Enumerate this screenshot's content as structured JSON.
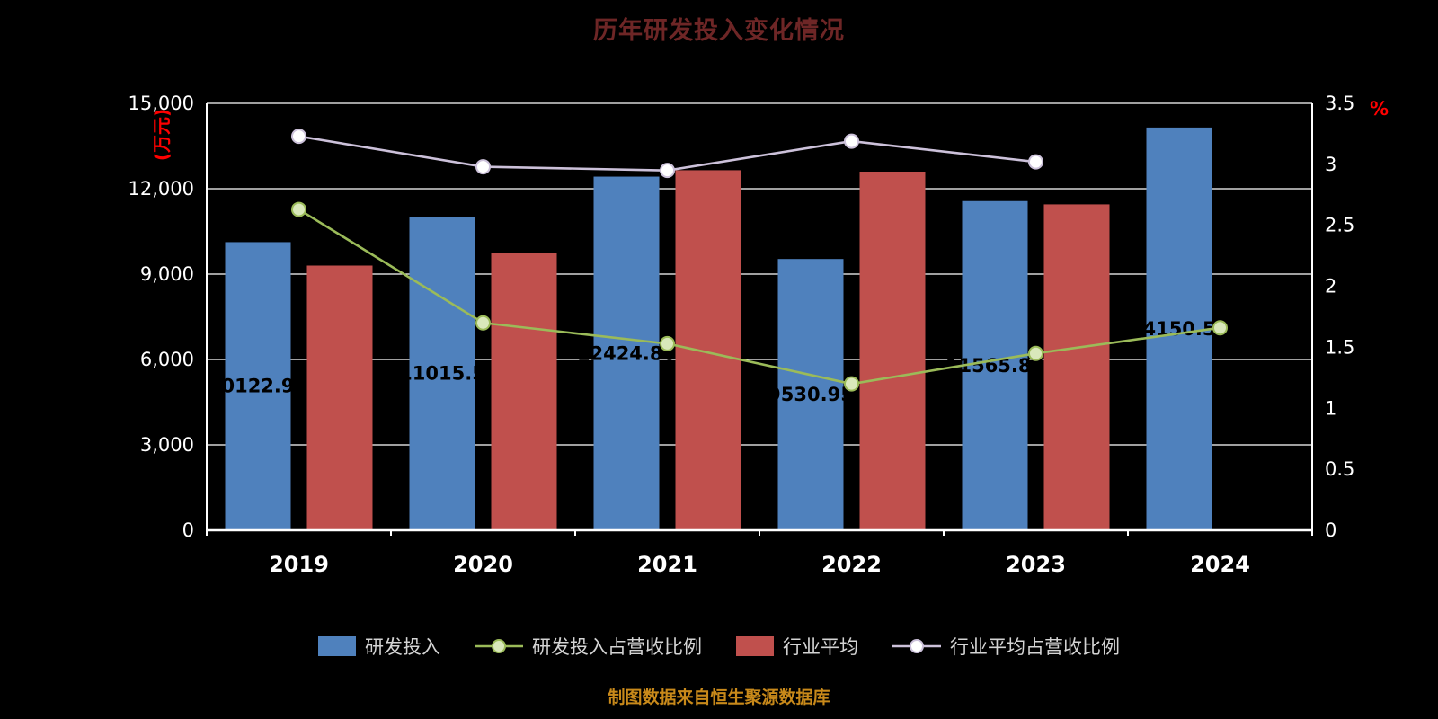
{
  "title": "历年研发投入变化情况",
  "footer": "制图数据来自恒生聚源数据库",
  "colors": {
    "background": "#000000",
    "title": "#6e2626",
    "axis": "#ffffff",
    "grid": "#ffffff",
    "tick_text": "#ffffff",
    "unit_text": "#ff0000",
    "bar_label": "#000000",
    "legend_text": "#d4d4d4",
    "footer_text": "#c8891a"
  },
  "chart_data": {
    "type": "bar",
    "title": "历年研发投入变化情况",
    "categories": [
      "2019",
      "2020",
      "2021",
      "2022",
      "2023",
      "2024"
    ],
    "series": [
      {
        "name": "研发投入",
        "kind": "bar",
        "axis": "left",
        "color": "#4f81bd",
        "values": [
          10122.98,
          11015.5,
          12424.8,
          9530.95,
          11565.83,
          14150.59
        ],
        "labels": [
          "10122.98",
          "11015.5",
          "12424.80",
          "9530.95",
          "11565.83",
          "14150.59"
        ]
      },
      {
        "name": "行业平均",
        "kind": "bar",
        "axis": "left",
        "color": "#c0504d",
        "values": [
          9300,
          9750,
          12650,
          12600,
          11450,
          null
        ],
        "labels": null
      },
      {
        "name": "研发投入占营收比例",
        "kind": "line",
        "axis": "right",
        "color": "#9bbb59",
        "marker_fill": "#d9e8bb",
        "values": [
          2.63,
          1.7,
          1.53,
          1.2,
          1.45,
          1.66
        ]
      },
      {
        "name": "行业平均占营收比例",
        "kind": "line",
        "axis": "right",
        "color": "#ccc1da",
        "marker_fill": "#ffffff",
        "values": [
          3.23,
          2.98,
          2.95,
          3.19,
          3.02,
          null
        ]
      }
    ],
    "left_axis": {
      "unit": "(万元)",
      "min": 0,
      "max": 15000,
      "tick_step": 3000,
      "tick_labels": [
        "0",
        "3,000",
        "6,000",
        "9,000",
        "12,000",
        "15,000"
      ]
    },
    "right_axis": {
      "unit": "%",
      "min": 0,
      "max": 3.5,
      "tick_step": 0.5,
      "tick_labels": [
        "0",
        "0.5",
        "1",
        "1.5",
        "2",
        "2.5",
        "3",
        "3.5"
      ]
    },
    "grid": true,
    "legend_position": "bottom"
  },
  "legend": {
    "items": [
      {
        "label": "研发投入",
        "swatch": "rect",
        "color": "#4f81bd",
        "name": "rd-investment"
      },
      {
        "label": "研发投入占营收比例",
        "swatch": "line",
        "color": "#9bbb59",
        "marker_fill": "#d9e8bb",
        "name": "rd-ratio"
      },
      {
        "label": "行业平均",
        "swatch": "rect",
        "color": "#c0504d",
        "name": "industry-average"
      },
      {
        "label": "行业平均占营收比例",
        "swatch": "line",
        "color": "#ccc1da",
        "marker_fill": "#ffffff",
        "name": "industry-ratio"
      }
    ]
  }
}
